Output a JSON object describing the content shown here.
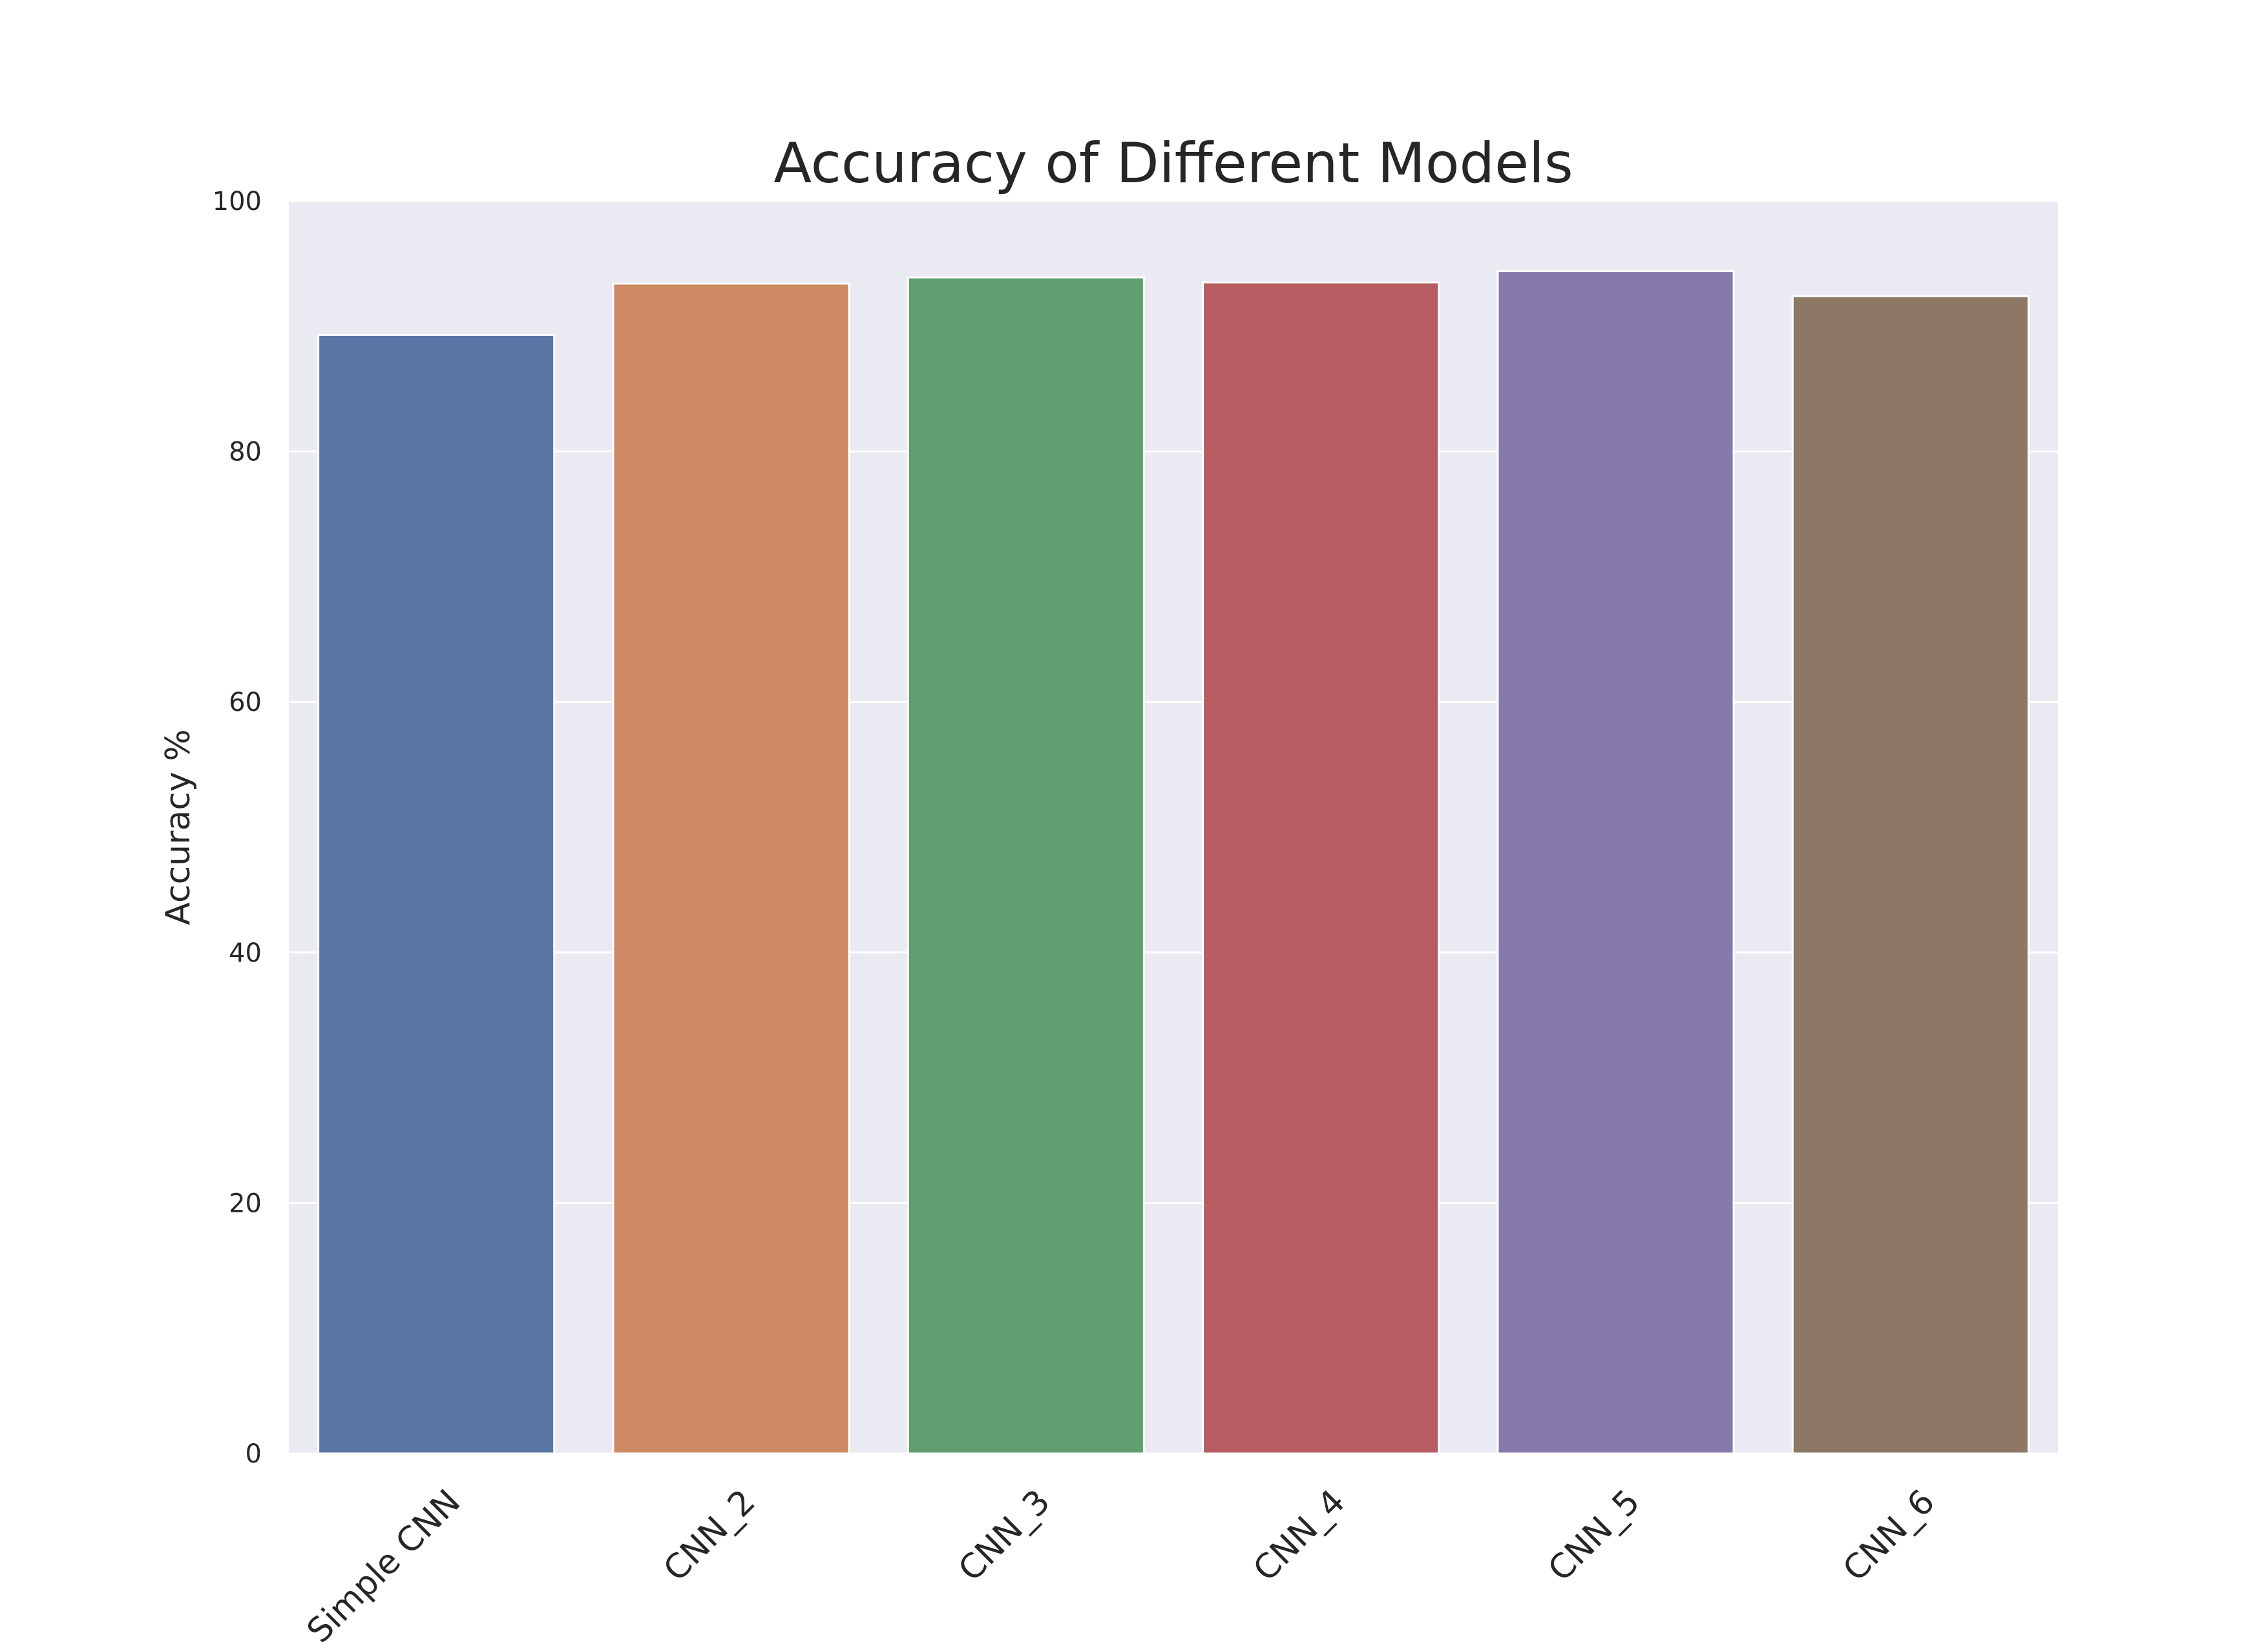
{
  "chart_data": {
    "type": "bar",
    "title": "Accuracy of Different Models",
    "xlabel": "",
    "ylabel": "Accuracy %",
    "categories": [
      "Simple CNN",
      "CNN_2",
      "CNN_3",
      "CNN_4",
      "CNN_5",
      "CNN_6"
    ],
    "values": [
      89.3,
      93.4,
      93.9,
      93.5,
      94.4,
      92.4
    ],
    "ylim": [
      0,
      100
    ],
    "yticks": [
      "0",
      "20",
      "40",
      "60",
      "80",
      "100"
    ],
    "grid": true,
    "legend": "none",
    "colors": [
      "#5875a4",
      "#cc8963",
      "#5f9e6e",
      "#b55d60",
      "#857aab",
      "#8d7866"
    ],
    "background": "#eaeaf2",
    "grid_color": "#ffffff"
  }
}
